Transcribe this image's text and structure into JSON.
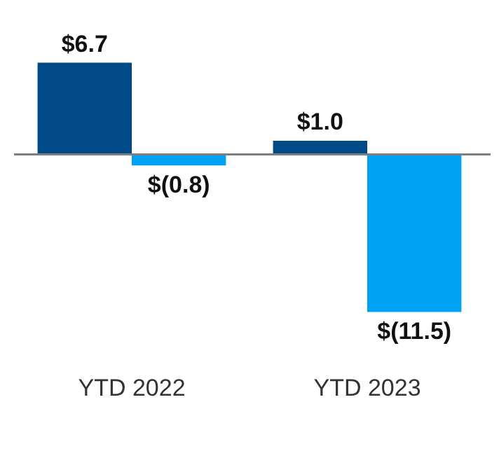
{
  "chart_data": {
    "type": "bar",
    "categories": [
      "YTD 2022",
      "YTD 2023"
    ],
    "series": [
      {
        "color": "#004b87",
        "values": [
          6.7,
          1.0
        ],
        "value_labels": [
          "$6.7",
          "$1.0"
        ]
      },
      {
        "color": "#00a3f4",
        "values": [
          -0.8,
          -11.5
        ],
        "value_labels": [
          "$(0.8)",
          "$(11.5)"
        ]
      }
    ],
    "legend": false,
    "grid": false
  }
}
